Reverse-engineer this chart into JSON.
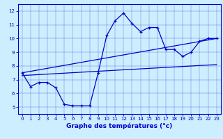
{
  "xlabel": "Graphe des températures (°c)",
  "bg_color": "#cceeff",
  "line_color": "#0000cc",
  "xlim": [
    -0.5,
    23.5
  ],
  "ylim": [
    4.5,
    12.5
  ],
  "xticks": [
    0,
    1,
    2,
    3,
    4,
    5,
    6,
    7,
    8,
    9,
    10,
    11,
    12,
    13,
    14,
    15,
    16,
    17,
    18,
    19,
    20,
    21,
    22,
    23
  ],
  "yticks": [
    5,
    6,
    7,
    8,
    9,
    10,
    11,
    12
  ],
  "curve1_x": [
    0,
    1,
    2,
    3,
    4,
    5,
    6,
    7,
    8,
    9,
    10,
    11,
    12,
    13,
    14,
    15,
    16,
    17,
    18,
    19,
    20,
    21,
    22,
    23
  ],
  "curve1_y": [
    7.5,
    6.5,
    6.8,
    6.8,
    6.4,
    5.2,
    5.1,
    5.1,
    5.1,
    7.5,
    10.2,
    11.3,
    11.85,
    11.1,
    10.5,
    10.8,
    10.8,
    9.2,
    9.2,
    8.7,
    9.0,
    9.8,
    10.0,
    10.0
  ],
  "curve2_x": [
    0,
    23
  ],
  "curve2_y": [
    7.5,
    10.0
  ],
  "curve3_x": [
    0,
    23
  ],
  "curve3_y": [
    7.3,
    8.1
  ],
  "xlabel_fontsize": 6.5,
  "tick_labelsize": 5
}
